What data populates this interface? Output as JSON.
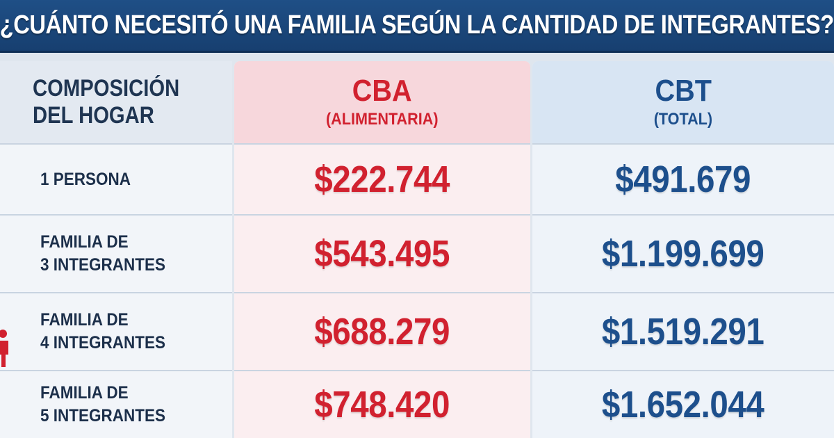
{
  "title": "¿CUÁNTO NECESITÓ UNA FAMILIA SEGÚN LA CANTIDAD DE INTEGRANTES?",
  "header": {
    "composition": "COMPOSICIÓN\nDEL HOGAR",
    "cba": {
      "title": "CBA",
      "subtitle": "(ALIMENTARIA)"
    },
    "cbt": {
      "title": "CBT",
      "subtitle": "(TOTAL)"
    }
  },
  "rows": [
    {
      "label": "1 PERSONA",
      "cba": "$222.744",
      "cbt": "$491.679"
    },
    {
      "label": "FAMILIA DE\n3 INTEGRANTES",
      "cba": "$543.495",
      "cbt": "$1.199.699"
    },
    {
      "label": "FAMILIA DE\n4 INTEGRANTES",
      "cba": "$688.279",
      "cbt": "$1.519.291"
    },
    {
      "label": "FAMILIA DE\n5 INTEGRANTES",
      "cba": "$748.420",
      "cbt": "$1.652.044"
    }
  ],
  "colors": {
    "banner": "#1f4f86",
    "cba_accent": "#d1212f",
    "cbt_accent": "#1d4f8c"
  },
  "icons": [
    "person-icon"
  ]
}
